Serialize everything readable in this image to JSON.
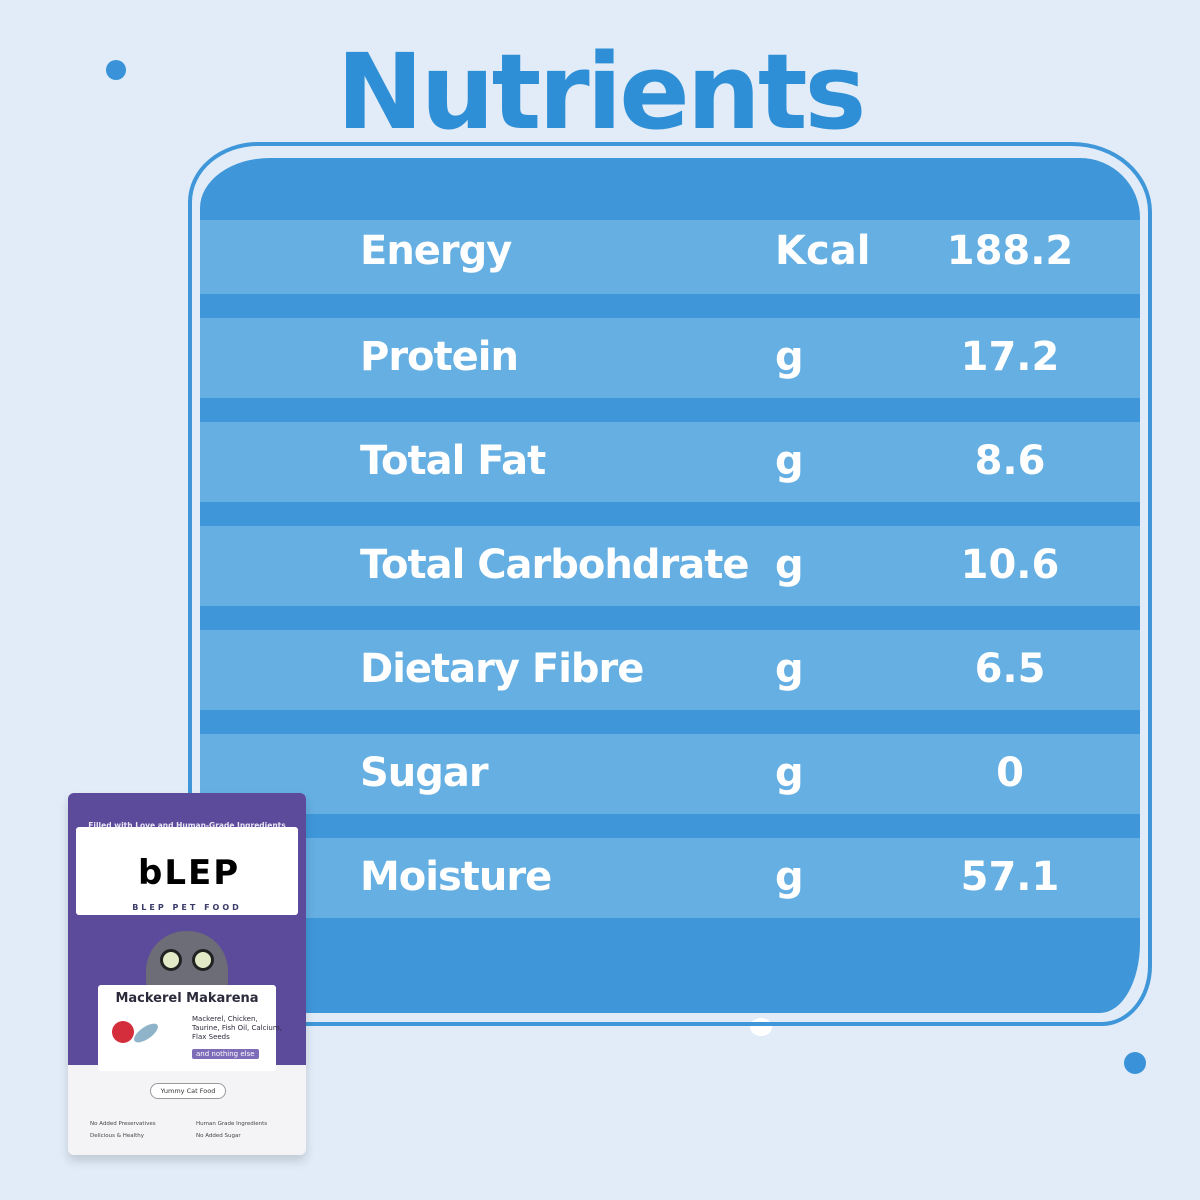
{
  "heading": "Nutrients",
  "nutrients": [
    {
      "name": "Energy",
      "unit": "Kcal",
      "value": "188.2"
    },
    {
      "name": "Protein",
      "unit": "g",
      "value": "17.2"
    },
    {
      "name": "Total Fat",
      "unit": "g",
      "value": "8.6"
    },
    {
      "name": "Total Carbohdrate",
      "unit": "g",
      "value": "10.6"
    },
    {
      "name": "Dietary Fibre",
      "unit": "g",
      "value": "6.5"
    },
    {
      "name": "Sugar",
      "unit": "g",
      "value": "0"
    },
    {
      "name": "Moisture",
      "unit": "g",
      "value": "57.1"
    }
  ],
  "colors": {
    "background": "#e1ecf8",
    "accent": "#2f8fd6",
    "table_dark": "#3f97da",
    "table_light": "#65afe2",
    "pack_purple": "#5c4a9b"
  },
  "product": {
    "tagline": "Filled with Love and Human-Grade Ingredients",
    "logo": "bLEP",
    "brand": "BLEP PET FOOD",
    "name": "Mackerel Makarena",
    "ingredients": "Mackerel, Chicken, Taurine, Fish Oil, Calcium, Flax Seeds",
    "extra": "and nothing else",
    "badge": "Yummy Cat Food",
    "features": [
      "No Added Preservatives",
      "Human Grade Ingredients",
      "Delicious & Healthy",
      "No Added Sugar"
    ]
  }
}
